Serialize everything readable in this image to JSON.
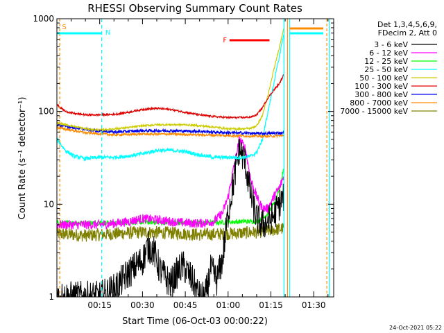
{
  "chart_data": {
    "type": "line",
    "title": "RHESSI Observing Summary Count Rates",
    "xlabel": "Start Time (06-Oct-03 00:00:22)",
    "ylabel": "Count Rate (s⁻¹ detector⁻¹)",
    "yscale": "log",
    "ylim": [
      1,
      1000
    ],
    "xlim_minutes": [
      0,
      97
    ],
    "x_tick_labels": [
      "00:15",
      "00:30",
      "00:45",
      "01:00",
      "01:15",
      "01:30"
    ],
    "x_tick_minutes": [
      15,
      30,
      45,
      60,
      75,
      90
    ],
    "y_tick_labels": [
      "1",
      "10",
      "100",
      "1000"
    ],
    "y_tick_values": [
      1,
      10,
      100,
      1000
    ],
    "legend_header": [
      "Det 1,3,4,5,6,9,",
      "FDecim 2, Att 0"
    ],
    "series": [
      {
        "name": "3 - 6 keV",
        "color": "#000000",
        "x": [
          0,
          5,
          10,
          15,
          20,
          25,
          30,
          32,
          34,
          36,
          38,
          40,
          42,
          44,
          46,
          48,
          50,
          52,
          54,
          56,
          58,
          60,
          62,
          64,
          66,
          68,
          70,
          72,
          74,
          76,
          78,
          79.5
        ],
        "y": [
          1,
          1,
          1,
          1,
          1.2,
          1.8,
          2.5,
          3.5,
          3.1,
          2.0,
          1.6,
          1.4,
          1.8,
          2.2,
          1.8,
          1.4,
          1.0,
          1.0,
          2.0,
          1.5,
          2.5,
          8,
          18,
          40,
          28,
          12,
          7,
          6,
          6.5,
          7.5,
          10,
          12
        ]
      },
      {
        "name": "6 - 12 keV",
        "color": "#ff00ff",
        "x": [
          0,
          10,
          15,
          20,
          25,
          30,
          35,
          40,
          45,
          50,
          55,
          58,
          60,
          62,
          64,
          66,
          68,
          70,
          72,
          74,
          76,
          78,
          79.5
        ],
        "y": [
          6,
          6,
          6,
          6.2,
          6.5,
          7,
          6.8,
          6.5,
          6.3,
          6.2,
          6.5,
          8,
          12,
          25,
          50,
          40,
          18,
          12,
          9,
          9,
          12,
          15,
          20
        ]
      },
      {
        "name": "12 - 25 keV",
        "color": "#00ff00",
        "x": [
          0,
          10,
          20,
          30,
          40,
          50,
          60,
          65,
          70,
          72,
          74,
          76,
          78,
          79.5
        ],
        "y": [
          6.3,
          6.3,
          6.3,
          6.4,
          6.3,
          6.3,
          6.4,
          6.5,
          6.5,
          7,
          8,
          10,
          14,
          25
        ]
      },
      {
        "name": "25 - 50 keV",
        "color": "#00ffff",
        "x": [
          0,
          3,
          6,
          10,
          15,
          20,
          25,
          30,
          35,
          40,
          45,
          50,
          55,
          60,
          65,
          68,
          70,
          72,
          74,
          76,
          78,
          79.5
        ],
        "y": [
          50,
          38,
          33,
          31,
          32,
          32,
          33,
          35,
          38,
          38,
          37,
          34,
          32,
          32,
          32,
          33,
          36,
          50,
          100,
          200,
          400,
          700
        ]
      },
      {
        "name": "50 - 100 keV",
        "color": "#cccc00",
        "x": [
          0,
          5,
          10,
          15,
          20,
          25,
          30,
          35,
          40,
          45,
          50,
          55,
          60,
          65,
          68,
          70,
          72,
          74,
          76,
          78,
          79.5
        ],
        "y": [
          75,
          70,
          65,
          63,
          65,
          67,
          70,
          72,
          72,
          72,
          70,
          68,
          65,
          65,
          66,
          70,
          90,
          150,
          280,
          500,
          800
        ]
      },
      {
        "name": "100 - 300 keV",
        "color": "#e00000",
        "x": [
          0,
          3,
          6,
          10,
          15,
          20,
          25,
          30,
          35,
          40,
          45,
          50,
          55,
          60,
          65,
          68,
          70,
          72,
          74,
          76,
          78,
          79.5
        ],
        "y": [
          118,
          100,
          95,
          92,
          92,
          93,
          98,
          105,
          108,
          105,
          98,
          92,
          88,
          86,
          86,
          87,
          92,
          110,
          140,
          170,
          200,
          250
        ]
      },
      {
        "name": "300 - 800 keV",
        "color": "#0000ee",
        "x": [
          0,
          10,
          20,
          30,
          40,
          50,
          60,
          70,
          75,
          79.5
        ],
        "y": [
          72,
          64,
          60,
          62,
          62,
          61,
          59,
          58,
          58,
          59
        ]
      },
      {
        "name": "800 - 7000 keV",
        "color": "#ff8c00",
        "x": [
          0,
          10,
          20,
          30,
          40,
          50,
          60,
          70,
          75,
          79.5
        ],
        "y": [
          67,
          59,
          56,
          57,
          57,
          56,
          55,
          54,
          54,
          55
        ]
      },
      {
        "name": "7000 - 15000 keV",
        "color": "#808000",
        "x": [
          0,
          10,
          20,
          30,
          40,
          50,
          60,
          70,
          75,
          79.5
        ],
        "y": [
          4.8,
          4.6,
          4.8,
          5.0,
          4.9,
          4.7,
          4.8,
          5.0,
          5.2,
          5.5
        ]
      }
    ],
    "annotations": [
      {
        "text": "S",
        "color": "#ff8c00"
      },
      {
        "text": "N",
        "color": "#00ffff"
      },
      {
        "text": "F",
        "color": "#ff0000"
      }
    ],
    "date_stamp": "24-Oct-2021 05:22"
  }
}
